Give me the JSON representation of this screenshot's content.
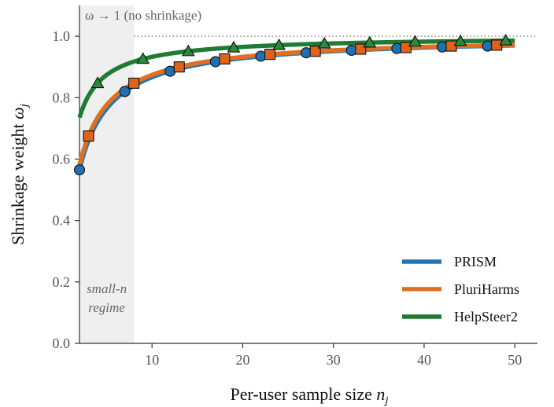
{
  "chart_data": {
    "type": "line",
    "xlabel": "Per-user sample size n_j",
    "ylabel": "Shrinkage weight ω_j",
    "xlim": [
      2,
      52.5
    ],
    "ylim": [
      0,
      1.1
    ],
    "x_ticks": [
      10,
      20,
      30,
      40,
      50
    ],
    "y_ticks": [
      0.0,
      0.2,
      0.4,
      0.6,
      0.8,
      1.0
    ],
    "x_tick_labels": [
      "10",
      "20",
      "30",
      "40",
      "50"
    ],
    "y_tick_labels": [
      "0.0",
      "0.2",
      "0.4",
      "0.6",
      "0.8",
      "1.0"
    ],
    "grid": false,
    "legend_position": "lower-right",
    "reference_line": {
      "y": 1.0,
      "style": "dotted",
      "label": "ω → 1 (no shrinkage)"
    },
    "shaded_region": {
      "x_start": 2,
      "x_end": 8,
      "label_line1": "small-n",
      "label_line2": "regime"
    },
    "series": [
      {
        "name": "PRISM",
        "color": "#1f6fb2",
        "line_color": "#1f77b4",
        "marker": "circle",
        "k": 1.54,
        "points": [
          {
            "x": 2,
            "y": 0.565
          },
          {
            "x": 7,
            "y": 0.82
          },
          {
            "x": 12,
            "y": 0.886
          },
          {
            "x": 17,
            "y": 0.917
          },
          {
            "x": 22,
            "y": 0.935
          },
          {
            "x": 27,
            "y": 0.946
          },
          {
            "x": 32,
            "y": 0.954
          },
          {
            "x": 37,
            "y": 0.96
          },
          {
            "x": 42,
            "y": 0.965
          },
          {
            "x": 47,
            "y": 0.968
          }
        ]
      },
      {
        "name": "PluriHarms",
        "color": "#e0621b",
        "line_color": "#e07020",
        "marker": "square",
        "k": 1.44,
        "points": [
          {
            "x": 3,
            "y": 0.675
          },
          {
            "x": 8,
            "y": 0.847
          },
          {
            "x": 13,
            "y": 0.9
          },
          {
            "x": 18,
            "y": 0.926
          },
          {
            "x": 23,
            "y": 0.941
          },
          {
            "x": 28,
            "y": 0.951
          },
          {
            "x": 33,
            "y": 0.958
          },
          {
            "x": 38,
            "y": 0.963
          },
          {
            "x": 43,
            "y": 0.968
          },
          {
            "x": 48,
            "y": 0.971
          }
        ]
      },
      {
        "name": "HelpSteer2",
        "color": "#2a8a3a",
        "line_color": "#1e7b34",
        "marker": "triangle",
        "k": 0.72,
        "points": [
          {
            "x": 4,
            "y": 0.847
          },
          {
            "x": 9,
            "y": 0.926
          },
          {
            "x": 14,
            "y": 0.951
          },
          {
            "x": 19,
            "y": 0.963
          },
          {
            "x": 24,
            "y": 0.971
          },
          {
            "x": 29,
            "y": 0.976
          },
          {
            "x": 34,
            "y": 0.979
          },
          {
            "x": 39,
            "y": 0.982
          },
          {
            "x": 44,
            "y": 0.984
          },
          {
            "x": 49,
            "y": 0.986
          }
        ]
      }
    ]
  }
}
